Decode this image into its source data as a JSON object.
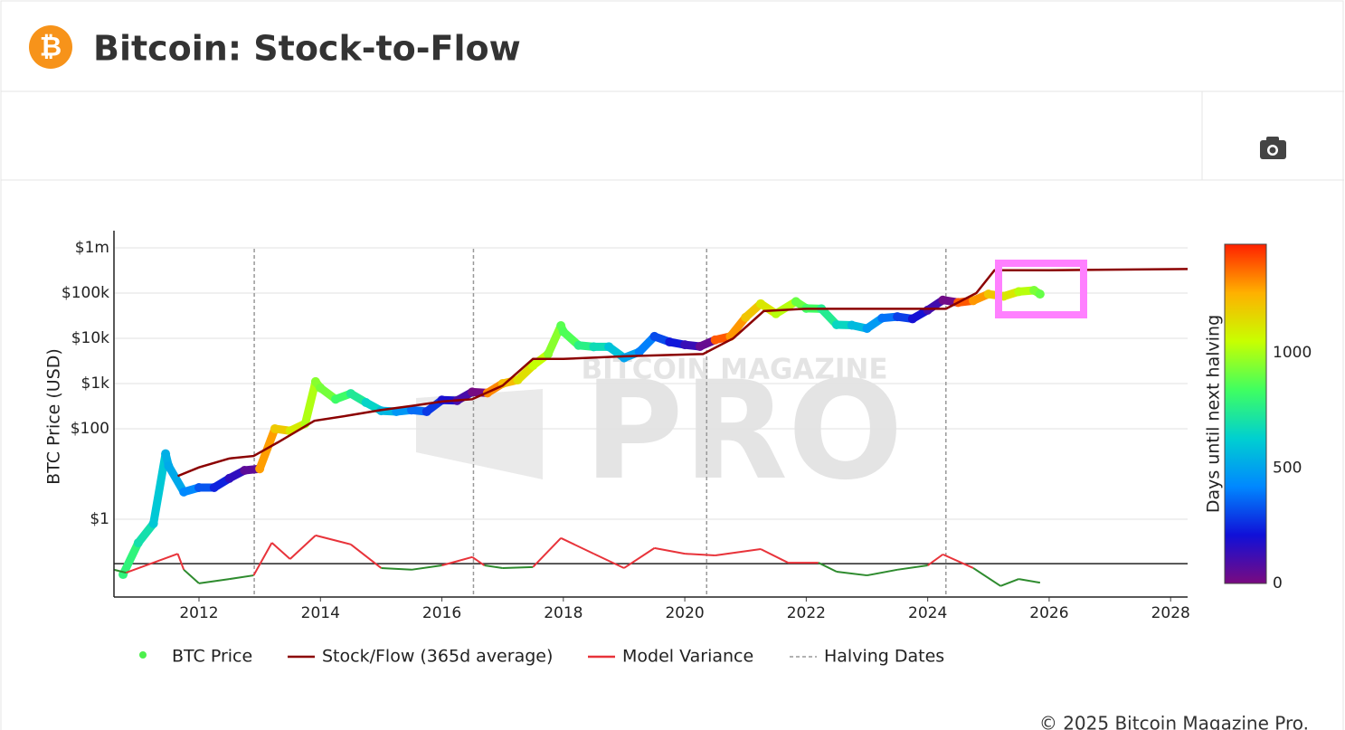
{
  "header": {
    "icon": "₿",
    "title": "Bitcoin: Stock-to-Flow"
  },
  "footer": "© 2025 Bitcoin Magazine Pro.",
  "chart_data": {
    "type": "scatter",
    "watermark": [
      "BITCOIN MAGAZINE",
      "PRO"
    ],
    "y_label": "BTC Price (USD)",
    "log_y": true,
    "grid": true,
    "xlim": [
      2010.6,
      2028.28
    ],
    "xticks": [
      2012,
      2014,
      2016,
      2018,
      2020,
      2022,
      2024,
      2026,
      2028
    ],
    "ylim": [
      0.019,
      2400000
    ],
    "yticks": [
      {
        "value": 1,
        "label": "$1"
      },
      {
        "value": 100,
        "label": "$100"
      },
      {
        "value": 1000,
        "label": "$1k"
      },
      {
        "value": 10000,
        "label": "$10k"
      },
      {
        "value": 100000,
        "label": "$100k"
      },
      {
        "value": 1000000,
        "label": "$1m"
      }
    ],
    "y2lim": [
      -1,
      10
    ],
    "colorbar": {
      "title": "Days until next halving",
      "clim": [
        0,
        1470
      ],
      "ticks": [
        0,
        500,
        1000
      ],
      "colorscale": [
        "#7a0a80",
        "#1010d8",
        "#0088ff",
        "#00d0d0",
        "#40ff60",
        "#c8ff00",
        "#ffb000",
        "#ff2000"
      ]
    },
    "series": [
      {
        "name": "BTC Price",
        "color": "#4cf04c",
        "x": [
          2010.75,
          2011.0,
          2011.25,
          2011.45,
          2011.5,
          2011.75,
          2012.0,
          2012.25,
          2012.5,
          2012.75,
          2013.0,
          2013.25,
          2013.5,
          2013.75,
          2013.92,
          2014.0,
          2014.25,
          2014.5,
          2014.75,
          2015.0,
          2015.25,
          2015.5,
          2015.75,
          2016.0,
          2016.25,
          2016.5,
          2016.75,
          2017.0,
          2017.25,
          2017.5,
          2017.75,
          2017.96,
          2018.0,
          2018.25,
          2018.5,
          2018.75,
          2019.0,
          2019.25,
          2019.5,
          2019.75,
          2020.0,
          2020.25,
          2020.5,
          2020.75,
          2021.0,
          2021.25,
          2021.5,
          2021.83,
          2022.0,
          2022.25,
          2022.5,
          2022.75,
          2023.0,
          2023.25,
          2023.5,
          2023.75,
          2024.0,
          2024.25,
          2024.5,
          2024.75,
          2025.0,
          2025.25,
          2025.5,
          2025.75,
          2025.85
        ],
        "values": [
          0.06,
          0.3,
          0.8,
          28,
          15,
          4,
          5,
          5,
          8,
          12,
          13,
          100,
          90,
          130,
          1100,
          800,
          450,
          600,
          380,
          250,
          240,
          260,
          240,
          430,
          420,
          650,
          620,
          1000,
          1200,
          2500,
          4500,
          19000,
          14000,
          7000,
          6500,
          6500,
          3700,
          5000,
          11000,
          8300,
          7200,
          6600,
          9200,
          11000,
          29000,
          58000,
          35000,
          65000,
          46000,
          45000,
          20000,
          19500,
          16500,
          28000,
          30000,
          27000,
          42000,
          70000,
          62000,
          68000,
          95000,
          85000,
          108000,
          115000,
          95000
        ],
        "color_values": [
          789,
          698,
          606,
          533,
          515,
          424,
          332,
          241,
          150,
          58,
          1286,
          1194,
          1103,
          1011,
          949,
          920,
          829,
          738,
          646,
          555,
          464,
          373,
          281,
          190,
          99,
          7,
          1319,
          1227,
          1136,
          1045,
          953,
          877,
          862,
          771,
          680,
          588,
          497,
          406,
          314,
          223,
          131,
          40,
          1388,
          1297,
          1205,
          1114,
          1023,
          902,
          840,
          749,
          658,
          566,
          475,
          384,
          292,
          201,
          110,
          18,
          1388,
          1297,
          1205,
          1114,
          1023,
          931,
          895
        ]
      },
      {
        "name": "Stock/Flow (365d average)",
        "color": "#8b0000",
        "x": [
          2011.65,
          2012.0,
          2012.5,
          2012.9,
          2013.3,
          2013.9,
          2014.5,
          2015.0,
          2015.5,
          2016.0,
          2016.5,
          2017.0,
          2017.5,
          2018.0,
          2019.0,
          2020.3,
          2020.8,
          2021.3,
          2022.0,
          2023.0,
          2024.3,
          2024.8,
          2025.1,
          2026.0,
          2027.0,
          2028.28
        ],
        "values": [
          9,
          14,
          22,
          25,
          50,
          150,
          200,
          260,
          320,
          400,
          450,
          900,
          3500,
          3500,
          4000,
          4500,
          10000,
          40000,
          45000,
          45000,
          45000,
          100000,
          320000,
          320000,
          330000,
          340000
        ]
      },
      {
        "name": "Model Variance",
        "color": "#e8333a",
        "negative_color": "#2e8b2e",
        "axis": "y2",
        "x": [
          2010.6,
          2010.8,
          2011.65,
          2011.75,
          2012.0,
          2012.5,
          2012.9,
          2013.2,
          2013.5,
          2013.92,
          2014.5,
          2015.0,
          2015.5,
          2016.0,
          2016.5,
          2016.7,
          2017.0,
          2017.5,
          2017.96,
          2018.5,
          2019.0,
          2019.5,
          2020.0,
          2020.5,
          2021.25,
          2021.7,
          2022.2,
          2022.5,
          2023.0,
          2023.5,
          2024.0,
          2024.25,
          2024.75,
          2025.2,
          2025.5,
          2025.85
        ],
        "values": [
          -0.18,
          -0.27,
          0.3,
          -0.18,
          -0.59,
          -0.46,
          -0.35,
          0.63,
          0.14,
          0.85,
          0.58,
          -0.13,
          -0.18,
          -0.05,
          0.2,
          -0.05,
          -0.13,
          -0.1,
          0.77,
          0.3,
          -0.13,
          0.47,
          0.3,
          0.25,
          0.44,
          0.03,
          0.03,
          -0.24,
          -0.35,
          -0.18,
          -0.05,
          0.28,
          -0.13,
          -0.67,
          -0.46,
          -0.57
        ]
      }
    ],
    "halving_dates": {
      "name": "Halving Dates",
      "color": "#999999",
      "x": [
        2012.91,
        2016.52,
        2020.36,
        2024.3
      ]
    }
  }
}
